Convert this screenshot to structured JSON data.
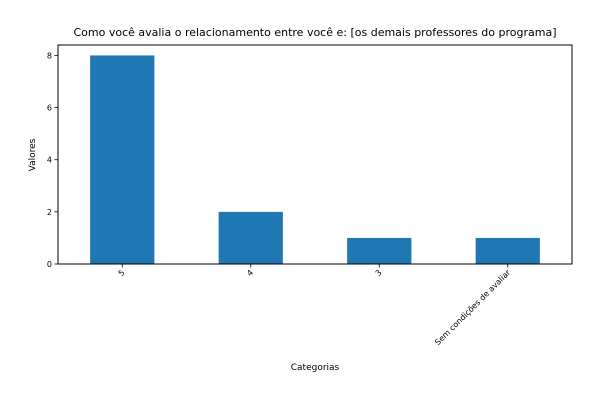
{
  "chart_data": {
    "type": "bar",
    "title": "Como você avalia o relacionamento entre você e: [os demais professores do programa]",
    "xlabel": "Categorias",
    "ylabel": "Valores",
    "categories": [
      "5",
      "4",
      "3",
      "Sem condições de avaliar"
    ],
    "values": [
      8,
      2,
      1,
      1
    ],
    "ylim": [
      0,
      8.4
    ],
    "yticks": [
      0,
      2,
      4,
      6,
      8
    ],
    "bar_color": "#1f77b4",
    "grid": false,
    "legend": "none"
  }
}
